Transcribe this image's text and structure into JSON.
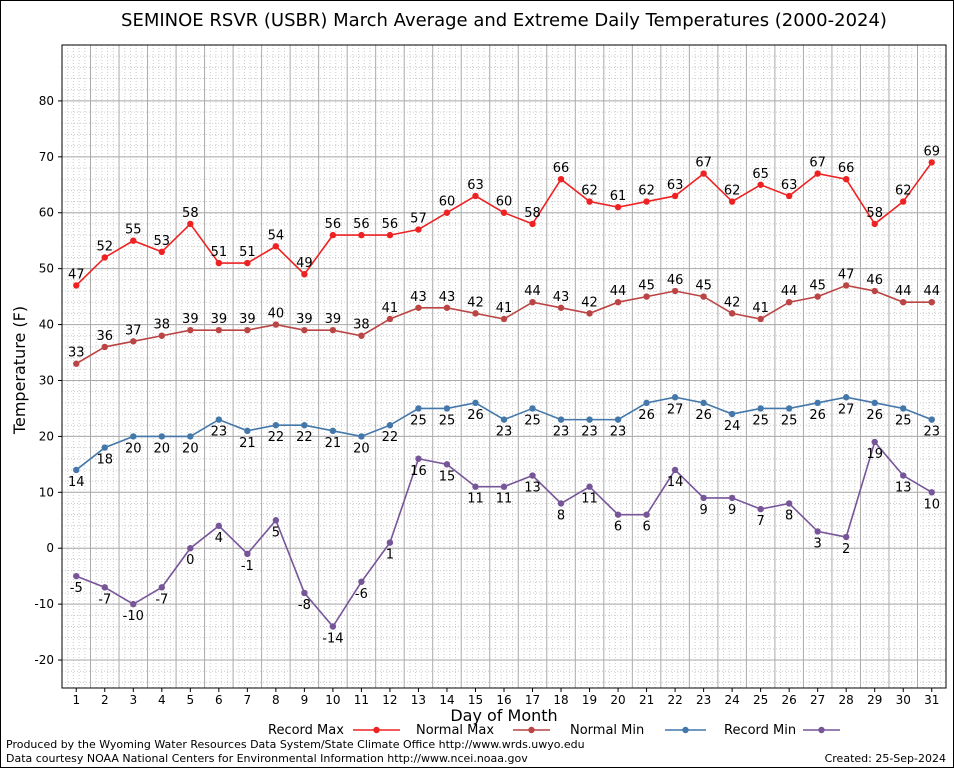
{
  "chart_data": {
    "type": "line",
    "title": "SEMINOE RSVR (USBR) March Average and Extreme Daily Temperatures (2000-2024)",
    "xlabel": "Day of Month",
    "ylabel": "Temperature (F)",
    "ylim": [
      -25,
      90
    ],
    "xlim": [
      0.5,
      31.5
    ],
    "yticks": [
      -20,
      -10,
      0,
      10,
      20,
      30,
      40,
      50,
      60,
      70,
      80
    ],
    "x": [
      1,
      2,
      3,
      4,
      5,
      6,
      7,
      8,
      9,
      10,
      11,
      12,
      13,
      14,
      15,
      16,
      17,
      18,
      19,
      20,
      21,
      22,
      23,
      24,
      25,
      26,
      27,
      28,
      29,
      30,
      31
    ],
    "grid": true,
    "legend_position": "bottom",
    "series": [
      {
        "name": "Record Max",
        "color": "#ee2222",
        "values": [
          47,
          52,
          55,
          53,
          58,
          51,
          51,
          54,
          49,
          56,
          56,
          56,
          57,
          60,
          63,
          60,
          58,
          66,
          62,
          61,
          62,
          63,
          67,
          62,
          65,
          63,
          67,
          66,
          58,
          62,
          69
        ]
      },
      {
        "name": "Normal Max",
        "color": "#bb4444",
        "values": [
          33,
          36,
          37,
          38,
          39,
          39,
          39,
          40,
          39,
          39,
          38,
          41,
          43,
          43,
          42,
          41,
          44,
          43,
          42,
          44,
          45,
          46,
          45,
          42,
          41,
          44,
          45,
          47,
          46,
          44,
          44
        ]
      },
      {
        "name": "Normal Min",
        "color": "#4477aa",
        "values": [
          14,
          18,
          20,
          20,
          20,
          23,
          21,
          22,
          22,
          21,
          20,
          22,
          25,
          25,
          26,
          23,
          25,
          23,
          23,
          23,
          26,
          27,
          26,
          24,
          25,
          25,
          26,
          27,
          26,
          25,
          23
        ]
      },
      {
        "name": "Record Min",
        "color": "#775599",
        "values": [
          -5,
          -7,
          -10,
          -7,
          0,
          4,
          -1,
          5,
          -8,
          -14,
          -6,
          1,
          16,
          15,
          11,
          11,
          13,
          8,
          11,
          6,
          6,
          14,
          9,
          9,
          7,
          8,
          3,
          2,
          19,
          13,
          10
        ]
      }
    ]
  },
  "footer": {
    "line1": "Produced by the Wyoming Water Resources Data System/State Climate Office http://www.wrds.uwyo.edu",
    "line2": "Data courtesy NOAA National Centers for Environmental Information http://www.ncei.noaa.gov",
    "created": "Created:  25-Sep-2024"
  }
}
